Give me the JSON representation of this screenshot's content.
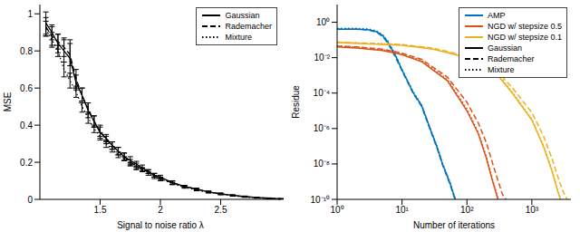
{
  "chart_data": [
    {
      "type": "line",
      "xlabel": "Signal to noise ratio λ",
      "ylabel": "MSE",
      "xlim": [
        1,
        3
      ],
      "xticks": [
        1.5,
        2,
        2.5
      ],
      "ylim": [
        0,
        1.05
      ],
      "yticks": [
        0,
        0.2,
        0.4,
        0.6,
        0.8,
        1
      ],
      "legend": "upper right",
      "x": [
        1.05,
        1.1,
        1.15,
        1.2,
        1.25,
        1.3,
        1.35,
        1.4,
        1.45,
        1.5,
        1.55,
        1.6,
        1.65,
        1.7,
        1.75,
        1.8,
        1.85,
        1.9,
        1.95,
        2.0,
        2.1,
        2.2,
        2.3,
        2.4,
        2.5,
        2.6,
        2.7,
        2.8,
        2.9,
        3.0
      ],
      "series": [
        {
          "name": "Gaussian",
          "color": "#000000",
          "line_style": "solid",
          "values": [
            0.95,
            0.9,
            0.84,
            0.8,
            0.76,
            0.63,
            0.56,
            0.48,
            0.42,
            0.36,
            0.33,
            0.29,
            0.26,
            0.23,
            0.21,
            0.19,
            0.17,
            0.15,
            0.13,
            0.12,
            0.09,
            0.07,
            0.055,
            0.04,
            0.03,
            0.022,
            0.015,
            0.01,
            0.006,
            0.003
          ],
          "errors": [
            0.06,
            0.04,
            0.05,
            0.06,
            0.1,
            0.04,
            0.04,
            0.04,
            0.03,
            0.03,
            0.02,
            0.02,
            0.02,
            0.02,
            0.02,
            0.015,
            0.015,
            0.01,
            0.01,
            0.01,
            0.01,
            0.005,
            0.005,
            0.005,
            0.004,
            0.003,
            0.003,
            0.002,
            0.002,
            0.001
          ]
        },
        {
          "name": "Rademacher",
          "color": "#000000",
          "line_style": "dashed",
          "values": [
            0.93,
            0.88,
            0.85,
            0.82,
            0.78,
            0.65,
            0.56,
            0.49,
            0.42,
            0.37,
            0.32,
            0.29,
            0.26,
            0.23,
            0.2,
            0.18,
            0.16,
            0.15,
            0.13,
            0.11,
            0.09,
            0.07,
            0.055,
            0.04,
            0.03,
            0.02,
            0.014,
            0.009,
            0.005,
            0.003
          ],
          "errors": [
            0.05,
            0.05,
            0.04,
            0.05,
            0.06,
            0.05,
            0.04,
            0.03,
            0.03,
            0.03,
            0.02,
            0.02,
            0.02,
            0.02,
            0.015,
            0.015,
            0.01,
            0.01,
            0.01,
            0.01,
            0.008,
            0.005,
            0.005,
            0.004,
            0.004,
            0.003,
            0.002,
            0.002,
            0.001,
            0.001
          ]
        },
        {
          "name": "Mixture",
          "color": "#000000",
          "line_style": "dotted",
          "values": [
            0.92,
            0.86,
            0.8,
            0.7,
            0.64,
            0.58,
            0.5,
            0.44,
            0.38,
            0.34,
            0.3,
            0.27,
            0.24,
            0.22,
            0.19,
            0.17,
            0.16,
            0.14,
            0.12,
            0.11,
            0.085,
            0.065,
            0.05,
            0.038,
            0.028,
            0.02,
            0.013,
            0.008,
            0.005,
            0.002
          ],
          "errors": [
            0.04,
            0.04,
            0.03,
            0.04,
            0.04,
            0.03,
            0.03,
            0.03,
            0.02,
            0.02,
            0.02,
            0.015,
            0.015,
            0.01,
            0.01,
            0.01,
            0.01,
            0.01,
            0.008,
            0.008,
            0.006,
            0.005,
            0.004,
            0.003,
            0.003,
            0.002,
            0.002,
            0.001,
            0.001,
            0.001
          ]
        }
      ]
    },
    {
      "type": "line",
      "xlabel": "Number of iterations",
      "ylabel": "Residue",
      "log": true,
      "xlim": [
        1,
        4000
      ],
      "xticks": [
        {
          "value": 1,
          "label": "10⁰"
        },
        {
          "value": 10,
          "label": "10¹"
        },
        {
          "value": 100,
          "label": "10²"
        },
        {
          "value": 1000,
          "label": "10³"
        }
      ],
      "ylim": [
        1e-10,
        10
      ],
      "yticks": [
        {
          "value": 1e-10,
          "label": "10⁻¹⁰"
        },
        {
          "value": 1e-08,
          "label": "10⁻⁸"
        },
        {
          "value": 1e-06,
          "label": "10⁻⁶"
        },
        {
          "value": 0.0001,
          "label": "10⁻⁴"
        },
        {
          "value": 0.01,
          "label": "10⁻²"
        },
        {
          "value": 1,
          "label": "10⁰"
        }
      ],
      "legend": "upper right",
      "series": [
        {
          "name": "AMP",
          "variant": "Gaussian",
          "color": "#0072bd",
          "line_style": "solid",
          "x": [
            1,
            2,
            3,
            4,
            5,
            6,
            8,
            10,
            15,
            20,
            27,
            35,
            42,
            55,
            66
          ],
          "values": [
            0.4,
            0.4,
            0.38,
            0.3,
            0.18,
            0.08,
            0.012,
            0.002,
            0.0001,
            2e-05,
            1e-06,
            8e-08,
            1e-08,
            8e-10,
            1e-10
          ]
        },
        {
          "name": "AMP",
          "variant": "Rademacher",
          "color": "#0072bd",
          "line_style": "dashed",
          "x": [
            1,
            2,
            3,
            4,
            5,
            6,
            8,
            10,
            15,
            20,
            27,
            35,
            42,
            55,
            66
          ],
          "values": [
            0.4,
            0.4,
            0.37,
            0.28,
            0.16,
            0.07,
            0.01,
            0.0018,
            9e-05,
            1.8e-05,
            9e-07,
            7e-08,
            9e-09,
            7e-10,
            9e-11
          ]
        },
        {
          "name": "AMP",
          "variant": "Mixture",
          "color": "#0072bd",
          "line_style": "dotted",
          "x": [
            1,
            2,
            3,
            4,
            5,
            6,
            8,
            10,
            15,
            20,
            27,
            35,
            42,
            55,
            66
          ],
          "values": [
            0.45,
            0.45,
            0.42,
            0.33,
            0.2,
            0.09,
            0.014,
            0.0022,
            0.00011,
            2.2e-05,
            1.1e-06,
            9e-08,
            1.1e-08,
            9e-10,
            1.1e-10
          ]
        },
        {
          "name": "NGD w/ stepsize 0.5",
          "variant": "Gaussian",
          "color": "#d95319",
          "line_style": "solid",
          "x": [
            1,
            2,
            5,
            10,
            20,
            50,
            100,
            150,
            200,
            250,
            300
          ],
          "values": [
            0.04,
            0.035,
            0.025,
            0.015,
            0.006,
            0.0005,
            1e-05,
            5e-07,
            2e-08,
            1e-09,
            1e-10
          ]
        },
        {
          "name": "NGD w/ stepsize 0.5",
          "variant": "Rademacher",
          "color": "#d95319",
          "line_style": "dashed",
          "x": [
            1,
            2,
            5,
            10,
            20,
            50,
            100,
            150,
            200,
            250,
            300,
            350,
            400
          ],
          "values": [
            0.045,
            0.04,
            0.03,
            0.018,
            0.008,
            0.0008,
            3e-05,
            2e-06,
            1.5e-07,
            1e-08,
            1.2e-09,
            2e-10,
            1e-10
          ]
        },
        {
          "name": "NGD w/ stepsize 0.5",
          "variant": "Mixture",
          "color": "#d95319",
          "line_style": "dotted",
          "x": [
            1,
            2,
            5,
            10,
            20,
            50,
            100,
            150,
            200,
            250,
            300
          ],
          "values": [
            0.045,
            0.04,
            0.028,
            0.017,
            0.007,
            0.0006,
            1.3e-05,
            6e-07,
            2.5e-08,
            1.2e-09,
            1.2e-10
          ]
        },
        {
          "name": "NGD w/ stepsize 0.1",
          "variant": "Gaussian",
          "color": "#edb120",
          "line_style": "solid",
          "x": [
            1,
            10,
            30,
            100,
            300,
            500,
            1000,
            1500,
            2000,
            2500,
            2750
          ],
          "values": [
            0.07,
            0.05,
            0.03,
            0.01,
            0.001,
            0.0001,
            3e-06,
            1e-07,
            5e-09,
            3e-10,
            1e-10
          ]
        },
        {
          "name": "NGD w/ stepsize 0.1",
          "variant": "Rademacher",
          "color": "#edb120",
          "line_style": "dashed",
          "x": [
            1,
            10,
            30,
            100,
            300,
            500,
            1000,
            1500,
            2000,
            2500,
            3000,
            3500
          ],
          "values": [
            0.075,
            0.055,
            0.035,
            0.012,
            0.0015,
            0.0002,
            8e-06,
            4e-07,
            2.5e-08,
            2e-09,
            3e-10,
            1e-10
          ]
        },
        {
          "name": "NGD w/ stepsize 0.1",
          "variant": "Mixture",
          "color": "#edb120",
          "line_style": "dotted",
          "x": [
            1,
            10,
            30,
            100,
            300,
            500,
            1000,
            1500,
            2000,
            2500,
            2750
          ],
          "values": [
            0.075,
            0.055,
            0.033,
            0.011,
            0.0012,
            0.00012,
            3.5e-06,
            1.2e-07,
            6e-09,
            3.5e-10,
            1.2e-10
          ]
        }
      ]
    }
  ]
}
